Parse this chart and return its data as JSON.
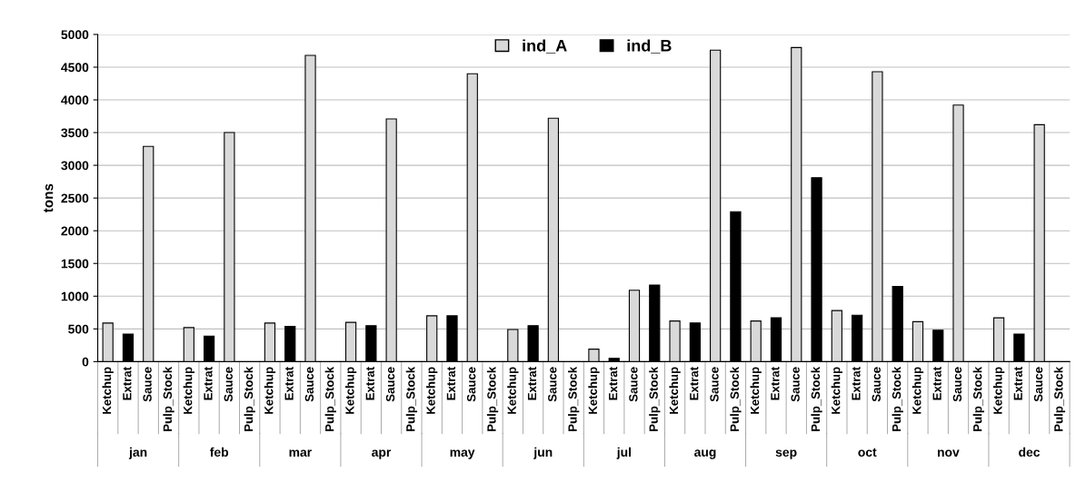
{
  "chart_data": {
    "type": "bar",
    "ylabel": "tons",
    "categories": [
      "Ketchup",
      "Extrat",
      "Sauce",
      "Pulp_Stock",
      "Ketchup",
      "Extrat",
      "Sauce",
      "Pulp_Stock",
      "Ketchup",
      "Extrat",
      "Sauce",
      "Pulp_Stock",
      "Ketchup",
      "Extrat",
      "Sauce",
      "Pulp_Stock",
      "Ketchup",
      "Extrat",
      "Sauce",
      "Pulp_Stock",
      "Ketchup",
      "Extrat",
      "Sauce",
      "Pulp_Stock",
      "Ketchup",
      "Extrat",
      "Sauce",
      "Pulp_Stock",
      "Ketchup",
      "Extrat",
      "Sauce",
      "Pulp_Stock",
      "Ketchup",
      "Extrat",
      "Sauce",
      "Pulp_Stock",
      "Ketchup",
      "Extrat",
      "Sauce",
      "Pulp_Stock",
      "Ketchup",
      "Extrat",
      "Sauce",
      "Pulp_Stock",
      "Ketchup",
      "Extrat",
      "Sauce",
      "Pulp_Stock"
    ],
    "series": [
      {
        "name": "ind_A",
        "color": "#d9d9d9",
        "values": [
          590,
          null,
          3290,
          null,
          520,
          null,
          3500,
          null,
          590,
          null,
          4680,
          null,
          600,
          null,
          3710,
          null,
          700,
          null,
          4400,
          null,
          490,
          null,
          3720,
          null,
          190,
          null,
          1090,
          null,
          620,
          null,
          4760,
          null,
          620,
          null,
          4800,
          null,
          780,
          null,
          4430,
          null,
          610,
          null,
          3920,
          null,
          670,
          null,
          3620,
          null
        ]
      },
      {
        "name": "ind_B",
        "color": "#000000",
        "values": [
          null,
          420,
          null,
          null,
          null,
          390,
          null,
          null,
          null,
          540,
          null,
          null,
          null,
          550,
          null,
          null,
          null,
          700,
          null,
          null,
          null,
          550,
          null,
          null,
          null,
          50,
          null,
          1170,
          null,
          590,
          null,
          2290,
          null,
          670,
          null,
          2810,
          null,
          710,
          null,
          1150,
          null,
          480,
          null,
          null,
          null,
          420,
          null,
          null
        ]
      }
    ],
    "annotations": [
      "jan",
      "feb",
      "mar",
      "apr",
      "may",
      "jun",
      "jul",
      "aug",
      "sep",
      "oct",
      "nov",
      "dec"
    ],
    "ylim": [
      0,
      5000
    ],
    "yticks": [
      0,
      500,
      1000,
      1500,
      2000,
      2500,
      3000,
      3500,
      4000,
      4500,
      5000
    ],
    "grid": "y",
    "legend": "top"
  }
}
